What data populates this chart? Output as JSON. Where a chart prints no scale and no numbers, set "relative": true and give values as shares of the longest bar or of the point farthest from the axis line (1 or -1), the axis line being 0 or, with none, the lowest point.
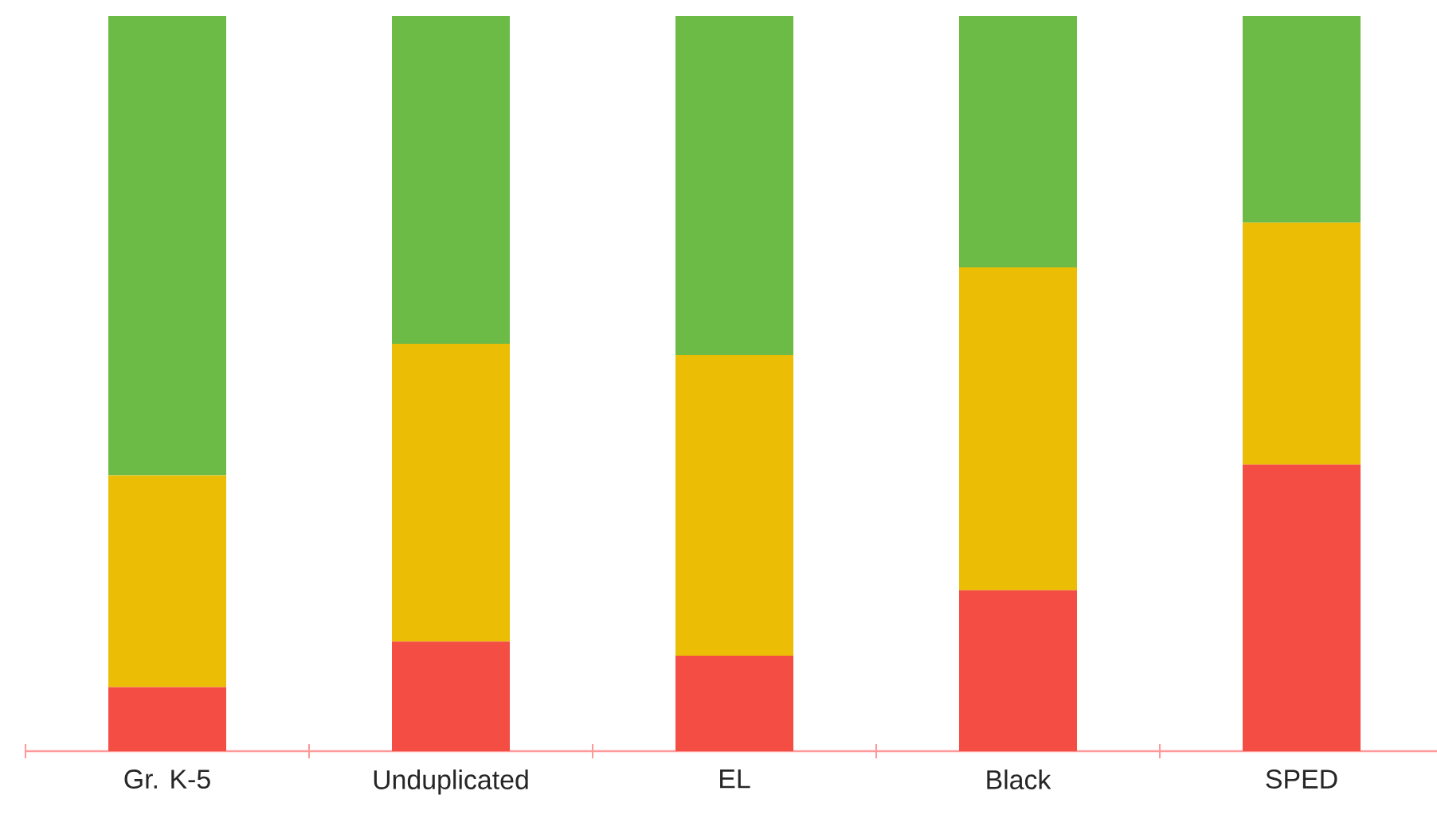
{
  "chart_data": {
    "type": "bar",
    "stacked": true,
    "relative": true,
    "categories": [
      "Gr. K-5",
      "Unduplicated",
      "EL",
      "Black",
      "SPED"
    ],
    "series": [
      {
        "color": "#f44e44",
        "values": [
          0.087,
          0.149,
          0.13,
          0.219,
          0.39
        ]
      },
      {
        "color": "#ebbd05",
        "values": [
          0.288,
          0.405,
          0.409,
          0.439,
          0.329
        ]
      },
      {
        "color": "#6cbb46",
        "values": [
          0.625,
          0.446,
          0.461,
          0.342,
          0.281
        ]
      }
    ]
  }
}
